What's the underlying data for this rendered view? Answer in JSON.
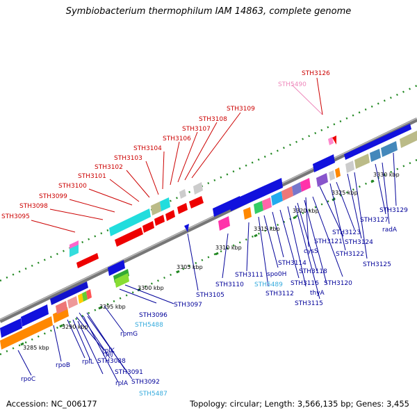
{
  "title": "Symbiobacterium thermophilum IAM 14863, complete genome",
  "footer": {
    "accession": "Accession: NC_006177",
    "summary": "Topology: circular; Length: 3,566,135 bp; Genes: 3,455"
  },
  "colors": {
    "red_label": "#cc0000",
    "blue_label": "#000099",
    "cyan_label": "#33aadd",
    "pink_label": "#ee88bb",
    "backbone": "#888888",
    "tick_dots": "#228822"
  },
  "scale_ticks": [
    "3285 kbp",
    "3290 kbp",
    "3295 kbp",
    "3300 kbp",
    "3305 kbp",
    "3310 kbp",
    "3315 kbp",
    "3320 kbp",
    "3325 kbp",
    "3330 kbp"
  ],
  "labels_upper": [
    "STH3095",
    "STH3098",
    "STH3099",
    "STH3100",
    "STH3101",
    "STH3102",
    "STH3103",
    "STH3104",
    "STH3106",
    "STH3107",
    "STH3108",
    "STH3109",
    "STH5490",
    "STH3126"
  ],
  "labels_lower": [
    "rpoC",
    "rpoB",
    "rplL",
    "rplK",
    "rplJ",
    "STH3088",
    "rplA",
    "STH3091",
    "STH3092",
    "STH5487",
    "rpmG",
    "STH5488",
    "STH3096",
    "STH3097",
    "STH3105",
    "STH3110",
    "STH3111",
    "STH5489",
    "spo0H",
    "STH3112",
    "STH3114",
    "STH3116",
    "thyA",
    "STH3115",
    "STH3118",
    "STH3120",
    "cysS",
    "STH3121",
    "STH3122",
    "STH3123",
    "STH3124",
    "STH3125",
    "STH3127",
    "radA",
    "STH3129"
  ]
}
